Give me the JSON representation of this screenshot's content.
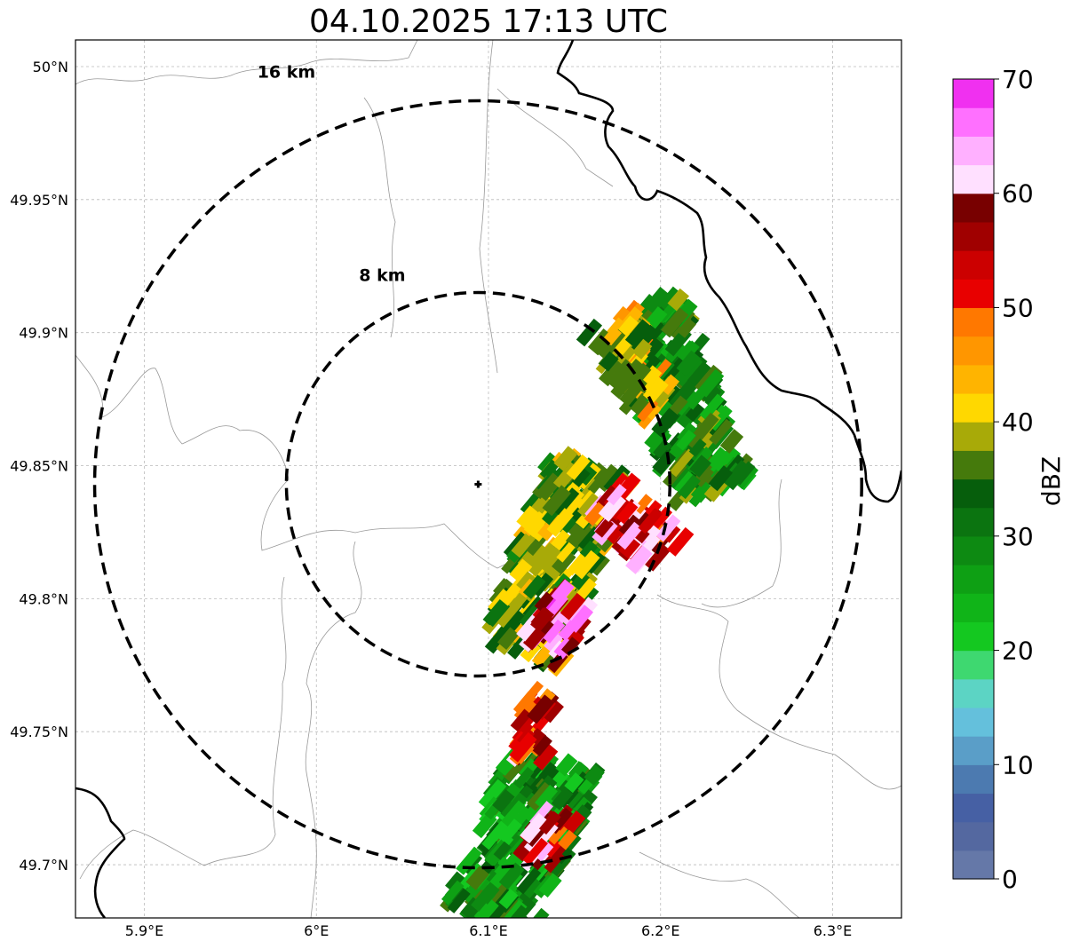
{
  "title": "04.10.2025 17:13 UTC",
  "map": {
    "lon_range": [
      5.86,
      6.34
    ],
    "lat_range": [
      49.68,
      50.01
    ],
    "lon_ticks": [
      {
        "value": 5.9,
        "label": "5.9°E"
      },
      {
        "value": 6.0,
        "label": "6°E"
      },
      {
        "value": 6.1,
        "label": "6.1°E"
      },
      {
        "value": 6.2,
        "label": "6.2°E"
      },
      {
        "value": 6.3,
        "label": "6.3°E"
      }
    ],
    "lat_ticks": [
      {
        "value": 50.0,
        "label": "50°N"
      },
      {
        "value": 49.95,
        "label": "49.95°N"
      },
      {
        "value": 49.9,
        "label": "49.9°N"
      },
      {
        "value": 49.85,
        "label": "49.85°N"
      },
      {
        "value": 49.8,
        "label": "49.8°N"
      },
      {
        "value": 49.75,
        "label": "49.75°N"
      },
      {
        "value": 49.7,
        "label": "49.7°N"
      }
    ],
    "grid": true,
    "radar_site": {
      "lon": 6.094,
      "lat": 49.843
    },
    "range_rings": [
      {
        "label": "8 km",
        "radius_km": 8
      },
      {
        "label": "16 km",
        "radius_km": 16
      }
    ]
  },
  "colorbar": {
    "label": "dBZ",
    "range": [
      0,
      70
    ],
    "ticks": [
      {
        "value": 0,
        "label": "0"
      },
      {
        "value": 10,
        "label": "10"
      },
      {
        "value": 20,
        "label": "20"
      },
      {
        "value": 30,
        "label": "30"
      },
      {
        "value": 40,
        "label": "40"
      },
      {
        "value": 50,
        "label": "50"
      },
      {
        "value": 60,
        "label": "60"
      },
      {
        "value": 70,
        "label": "70"
      }
    ],
    "colors": [
      "#6578a8",
      "#5468a0",
      "#4660a4",
      "#4c7ab0",
      "#5a9ec8",
      "#64c0dc",
      "#5cd4c4",
      "#3ed870",
      "#14c820",
      "#10b418",
      "#0ea014",
      "#0d8a12",
      "#0b7410",
      "#065e0c",
      "#457a0c",
      "#a8aa08",
      "#ffd800",
      "#ffb400",
      "#ff9600",
      "#ff7800",
      "#e80000",
      "#cc0000",
      "#a00000",
      "#780000",
      "#ffe0ff",
      "#ffb0ff",
      "#ff70ff",
      "#f030f0"
    ]
  },
  "echo_bands": [
    {
      "from": [
        6.19,
        49.91
      ],
      "to": [
        6.23,
        49.84
      ],
      "width": 0.028,
      "level": 12
    },
    {
      "from": [
        6.17,
        49.905
      ],
      "to": [
        6.2,
        49.87
      ],
      "width": 0.018,
      "level": 16
    },
    {
      "from": [
        6.16,
        49.85
      ],
      "to": [
        6.12,
        49.78
      ],
      "width": 0.032,
      "level": 14
    },
    {
      "from": [
        6.17,
        49.84
      ],
      "to": [
        6.2,
        49.815
      ],
      "width": 0.02,
      "level": 22
    },
    {
      "from": [
        6.15,
        49.8
      ],
      "to": [
        6.13,
        49.78
      ],
      "width": 0.018,
      "level": 24
    },
    {
      "from": [
        6.14,
        49.74
      ],
      "to": [
        6.1,
        49.68
      ],
      "width": 0.035,
      "level": 11
    },
    {
      "from": [
        6.14,
        49.72
      ],
      "to": [
        6.13,
        49.7
      ],
      "width": 0.015,
      "level": 22
    },
    {
      "from": [
        6.13,
        49.765
      ],
      "to": [
        6.125,
        49.74
      ],
      "width": 0.012,
      "level": 21
    }
  ]
}
